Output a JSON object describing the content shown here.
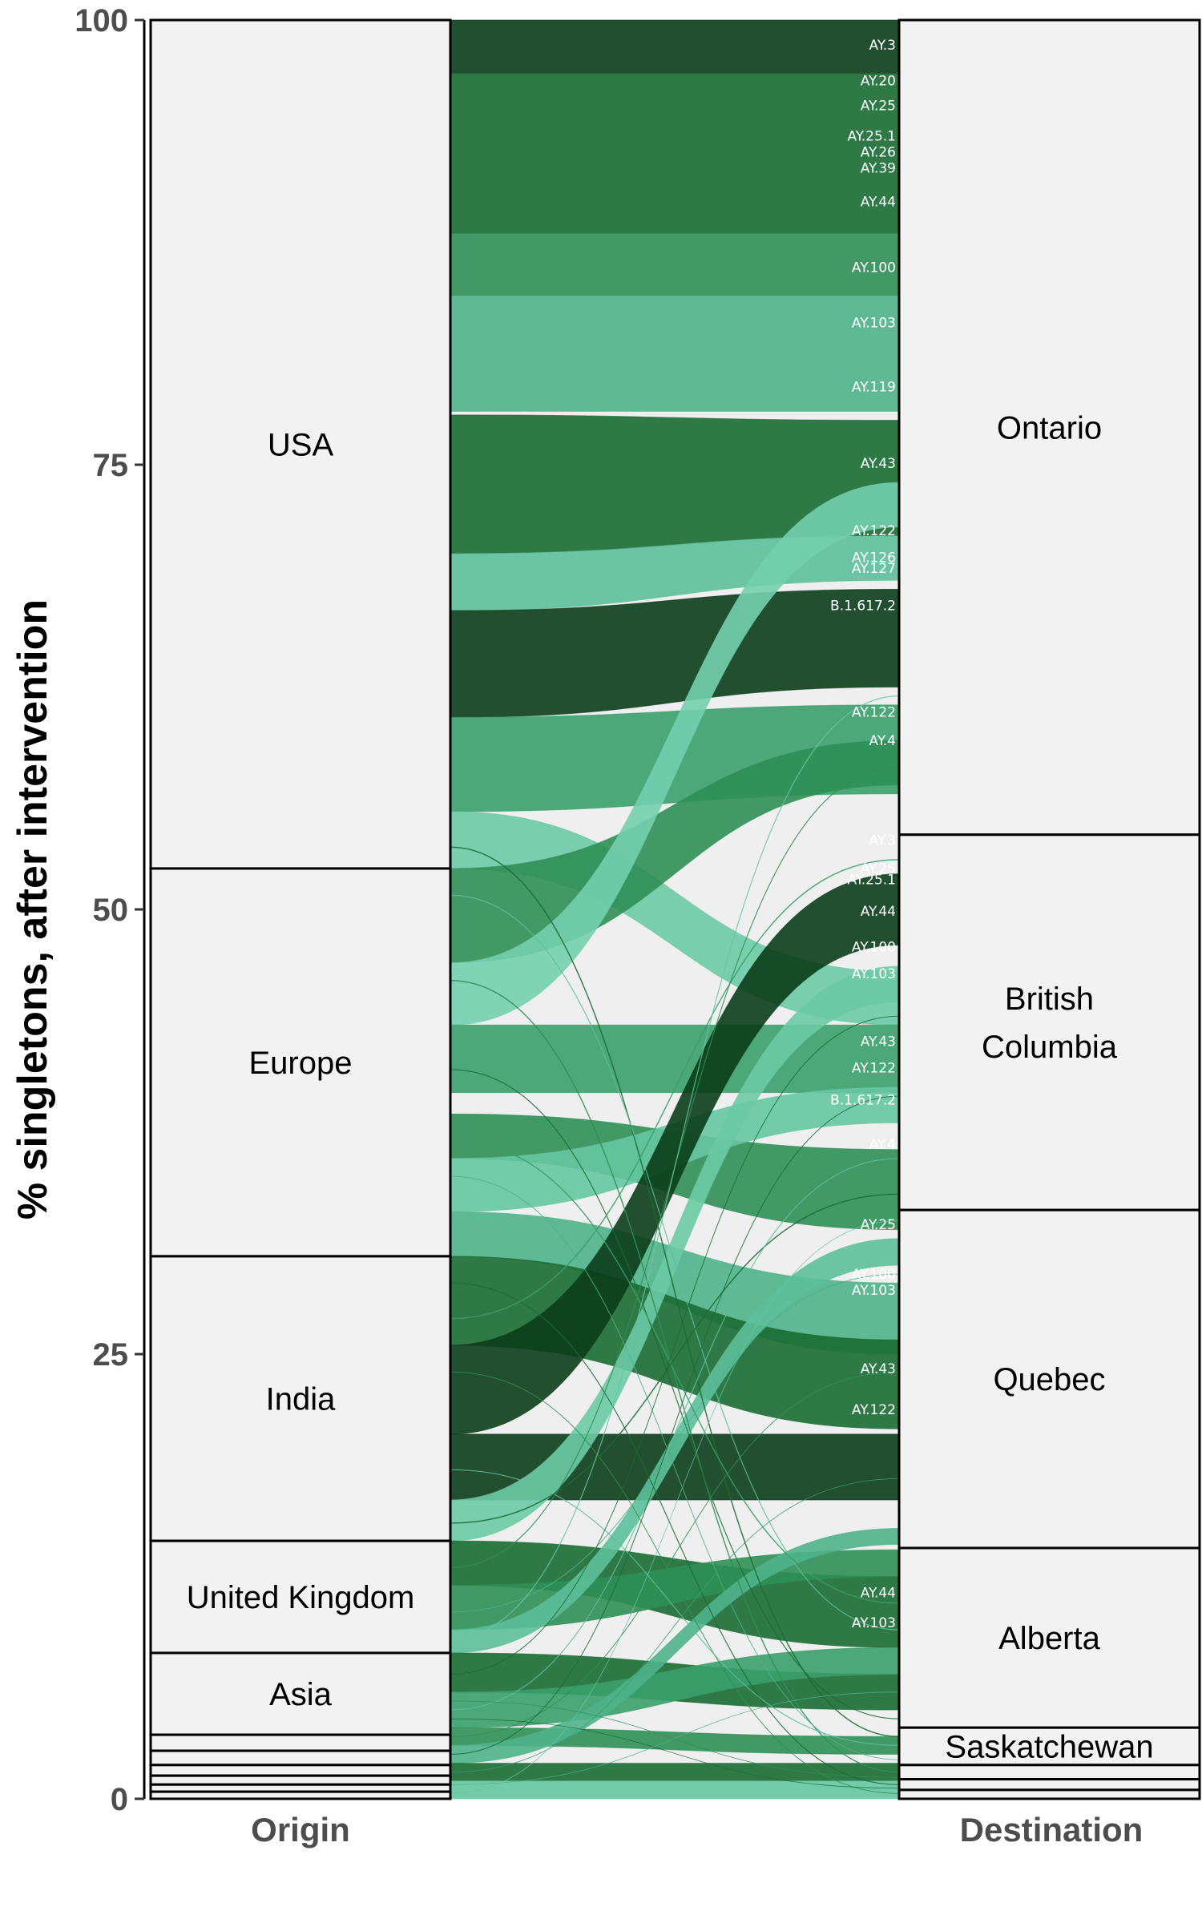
{
  "chart_data": {
    "type": "alluvial",
    "ylabel": "% singletons, after intervention",
    "ylim": [
      0,
      100
    ],
    "yticks": [
      0,
      25,
      50,
      75,
      100
    ],
    "axes": [
      "Origin",
      "Destination"
    ],
    "origin_strata": [
      {
        "name": "USA",
        "from": 52.3,
        "to": 100
      },
      {
        "name": "Europe",
        "from": 30.5,
        "to": 52.3
      },
      {
        "name": "India",
        "from": 14.5,
        "to": 30.5
      },
      {
        "name": "United Kingdom",
        "from": 8.2,
        "to": 14.5
      },
      {
        "name": "Asia",
        "from": 3.6,
        "to": 8.2
      },
      {
        "name": "",
        "from": 2.7,
        "to": 3.6
      },
      {
        "name": "",
        "from": 1.9,
        "to": 2.7
      },
      {
        "name": "",
        "from": 1.3,
        "to": 1.9
      },
      {
        "name": "",
        "from": 0.8,
        "to": 1.3
      },
      {
        "name": "",
        "from": 0.4,
        "to": 0.8
      },
      {
        "name": "",
        "from": 0.0,
        "to": 0.4
      }
    ],
    "destination_strata": [
      {
        "name": "Ontario",
        "from": 54.2,
        "to": 100
      },
      {
        "name": "British\nColumbia",
        "from": 33.1,
        "to": 54.2
      },
      {
        "name": "Quebec",
        "from": 14.1,
        "to": 33.1
      },
      {
        "name": "Alberta",
        "from": 4.0,
        "to": 14.1
      },
      {
        "name": "Saskatchewan",
        "from": 1.9,
        "to": 4.0
      },
      {
        "name": "",
        "from": 1.1,
        "to": 1.9
      },
      {
        "name": "",
        "from": 0.5,
        "to": 1.1
      },
      {
        "name": "",
        "from": 0.0,
        "to": 0.5
      }
    ],
    "flows": [
      {
        "from": [
          97.0,
          100
        ],
        "to": [
          97.0,
          100
        ],
        "color": "#0b3d1a"
      },
      {
        "from": [
          88.0,
          97.0
        ],
        "to": [
          88.0,
          97.0
        ],
        "color": "#1a6b33"
      },
      {
        "from": [
          84.5,
          88.0
        ],
        "to": [
          84.5,
          88.0
        ],
        "color": "#2f8f57"
      },
      {
        "from": [
          78.0,
          84.5
        ],
        "to": [
          78.0,
          84.5
        ],
        "color": "#4fb28a"
      },
      {
        "from": [
          70.0,
          77.8
        ],
        "to": [
          71.0,
          77.5
        ],
        "color": "#1a6b33"
      },
      {
        "from": [
          66.8,
          70.0
        ],
        "to": [
          68.5,
          71.0
        ],
        "color": "#5cbf9a"
      },
      {
        "from": [
          60.8,
          66.8
        ],
        "to": [
          62.5,
          68.0
        ],
        "color": "#0b3d1a"
      },
      {
        "from": [
          55.5,
          60.8
        ],
        "to": [
          56.5,
          61.5
        ],
        "color": "#3a9e6b"
      },
      {
        "from": [
          52.3,
          55.5
        ],
        "to": [
          43.5,
          46.5
        ],
        "color": "#6ccaa5"
      },
      {
        "from": [
          47.0,
          52.3
        ],
        "to": [
          57.0,
          59.5
        ],
        "color": "#2f8f57"
      },
      {
        "from": [
          43.5,
          47.0
        ],
        "to": [
          71.5,
          74.0
        ],
        "color": "#73cfae"
      },
      {
        "from": [
          39.7,
          43.5
        ],
        "to": [
          39.7,
          43.5
        ],
        "color": "#3a9e6b"
      },
      {
        "from": [
          36.0,
          38.5
        ],
        "to": [
          32.0,
          36.5
        ],
        "color": "#2f8f57"
      },
      {
        "from": [
          33.0,
          36.0
        ],
        "to": [
          38.0,
          40.0
        ],
        "color": "#66c7a2"
      },
      {
        "from": [
          30.5,
          33.0
        ],
        "to": [
          25.0,
          29.0
        ],
        "color": "#4fb28a"
      },
      {
        "from": [
          25.5,
          30.5
        ],
        "to": [
          20.8,
          25.8
        ],
        "color": "#1a6b33"
      },
      {
        "from": [
          20.5,
          25.5
        ],
        "to": [
          48.0,
          52.0
        ],
        "color": "#0b3d1a"
      },
      {
        "from": [
          16.8,
          20.5
        ],
        "to": [
          16.8,
          20.5
        ],
        "color": "#0b3d1a"
      },
      {
        "from": [
          14.5,
          16.8
        ],
        "to": [
          44.8,
          46.8
        ],
        "color": "#6ccaa5"
      },
      {
        "from": [
          12.0,
          14.5
        ],
        "to": [
          8.5,
          12.5
        ],
        "color": "#1a6b33"
      },
      {
        "from": [
          9.5,
          12.0
        ],
        "to": [
          12.5,
          14.0
        ],
        "color": "#2f8f57"
      },
      {
        "from": [
          8.2,
          9.5
        ],
        "to": [
          30.0,
          31.5
        ],
        "color": "#5cbf9a"
      },
      {
        "from": [
          6.0,
          8.2
        ],
        "to": [
          5.0,
          7.0
        ],
        "color": "#1a6b33"
      },
      {
        "from": [
          4.0,
          6.0
        ],
        "to": [
          7.0,
          8.5
        ],
        "color": "#3a9e6b"
      },
      {
        "from": [
          3.0,
          4.0
        ],
        "to": [
          2.5,
          3.5
        ],
        "color": "#2f8f57"
      },
      {
        "from": [
          2.0,
          3.0
        ],
        "to": [
          14.3,
          15.2
        ],
        "color": "#4fb28a"
      },
      {
        "from": [
          1.0,
          2.0
        ],
        "to": [
          1.0,
          2.0
        ],
        "color": "#1a6b33"
      },
      {
        "from": [
          0.0,
          1.0
        ],
        "to": [
          0.0,
          1.0
        ],
        "color": "#66c7a2"
      }
    ],
    "lines": [
      {
        "from": 53.5,
        "to": 3.5,
        "color": "#1a6b33",
        "w": 1.5
      },
      {
        "from": 50.8,
        "to": 9.5,
        "color": "#5cbf9a",
        "w": 1.2
      },
      {
        "from": 46.0,
        "to": 1.5,
        "color": "#2f8f57",
        "w": 1.5
      },
      {
        "from": 41.0,
        "to": 4.5,
        "color": "#1a6b33",
        "w": 1.2
      },
      {
        "from": 37.0,
        "to": 11.0,
        "color": "#3a9e6b",
        "w": 1.5
      },
      {
        "from": 35.0,
        "to": 2.2,
        "color": "#4fb28a",
        "w": 1.0
      },
      {
        "from": 29.0,
        "to": 0.8,
        "color": "#1a6b33",
        "w": 1.2
      },
      {
        "from": 27.0,
        "to": 52.8,
        "color": "#3a9e6b",
        "w": 1.5
      },
      {
        "from": 24.0,
        "to": 0.3,
        "color": "#2f8f57",
        "w": 1.0
      },
      {
        "from": 18.5,
        "to": 3.0,
        "color": "#5cbf9a",
        "w": 1.2
      },
      {
        "from": 15.5,
        "to": 34.0,
        "color": "#1a6b33",
        "w": 1.5
      },
      {
        "from": 13.0,
        "to": 58.0,
        "color": "#2f8f57",
        "w": 1.2
      },
      {
        "from": 10.5,
        "to": 29.5,
        "color": "#4fb28a",
        "w": 1.0
      },
      {
        "from": 9.0,
        "to": 62.0,
        "color": "#66c7a2",
        "w": 1.2
      },
      {
        "from": 7.0,
        "to": 44.0,
        "color": "#1a6b33",
        "w": 1.0
      },
      {
        "from": 5.0,
        "to": 36.0,
        "color": "#5cbf9a",
        "w": 1.2
      },
      {
        "from": 3.5,
        "to": 24.0,
        "color": "#2f8f57",
        "w": 1.0
      },
      {
        "from": 2.5,
        "to": 39.5,
        "color": "#1a6b33",
        "w": 1.0
      },
      {
        "from": 1.5,
        "to": 18.0,
        "color": "#3a9e6b",
        "w": 0.9
      },
      {
        "from": 0.8,
        "to": 6.0,
        "color": "#4fb28a",
        "w": 0.8
      },
      {
        "from": 0.3,
        "to": 32.5,
        "color": "#66c7a2",
        "w": 0.8
      },
      {
        "from": 4.5,
        "to": 0.6,
        "color": "#1a6b33",
        "w": 0.8
      },
      {
        "from": 5.5,
        "to": 1.2,
        "color": "#2f8f57",
        "w": 0.8
      }
    ],
    "flow_labels": [
      {
        "text": "AY.3",
        "y": 98.6
      },
      {
        "text": "AY.20",
        "y": 96.6
      },
      {
        "text": "AY.25",
        "y": 95.2
      },
      {
        "text": "AY.25.1",
        "y": 93.5
      },
      {
        "text": "AY.26",
        "y": 92.6
      },
      {
        "text": "AY.39",
        "y": 91.7
      },
      {
        "text": "AY.44",
        "y": 89.8
      },
      {
        "text": "AY.100",
        "y": 86.1
      },
      {
        "text": "AY.103",
        "y": 83.0
      },
      {
        "text": "AY.119",
        "y": 79.4
      },
      {
        "text": "AY.43",
        "y": 75.1
      },
      {
        "text": "AY.122",
        "y": 71.3
      },
      {
        "text": "AY.126",
        "y": 69.8
      },
      {
        "text": "AY.127",
        "y": 69.2
      },
      {
        "text": "B.1.617.2",
        "y": 67.1
      },
      {
        "text": "AY.122",
        "y": 61.1
      },
      {
        "text": "AY.4",
        "y": 59.5
      },
      {
        "text": "AY.3",
        "y": 53.9
      },
      {
        "text": "AY.25",
        "y": 52.3
      },
      {
        "text": "AY.25.1",
        "y": 51.7
      },
      {
        "text": "AY.44",
        "y": 49.9
      },
      {
        "text": "AY.100",
        "y": 47.9
      },
      {
        "text": "AY.103",
        "y": 46.4
      },
      {
        "text": "AY.43",
        "y": 42.6
      },
      {
        "text": "AY.122",
        "y": 41.1
      },
      {
        "text": "B.1.617.2",
        "y": 39.3
      },
      {
        "text": "AY.4",
        "y": 36.8
      },
      {
        "text": "AY.25",
        "y": 32.3
      },
      {
        "text": "AY.100",
        "y": 29.5
      },
      {
        "text": "AY.103",
        "y": 28.6
      },
      {
        "text": "AY.43",
        "y": 24.2
      },
      {
        "text": "AY.122",
        "y": 21.9
      },
      {
        "text": "AY.44",
        "y": 11.6
      },
      {
        "text": "AY.103",
        "y": 9.9
      }
    ]
  }
}
